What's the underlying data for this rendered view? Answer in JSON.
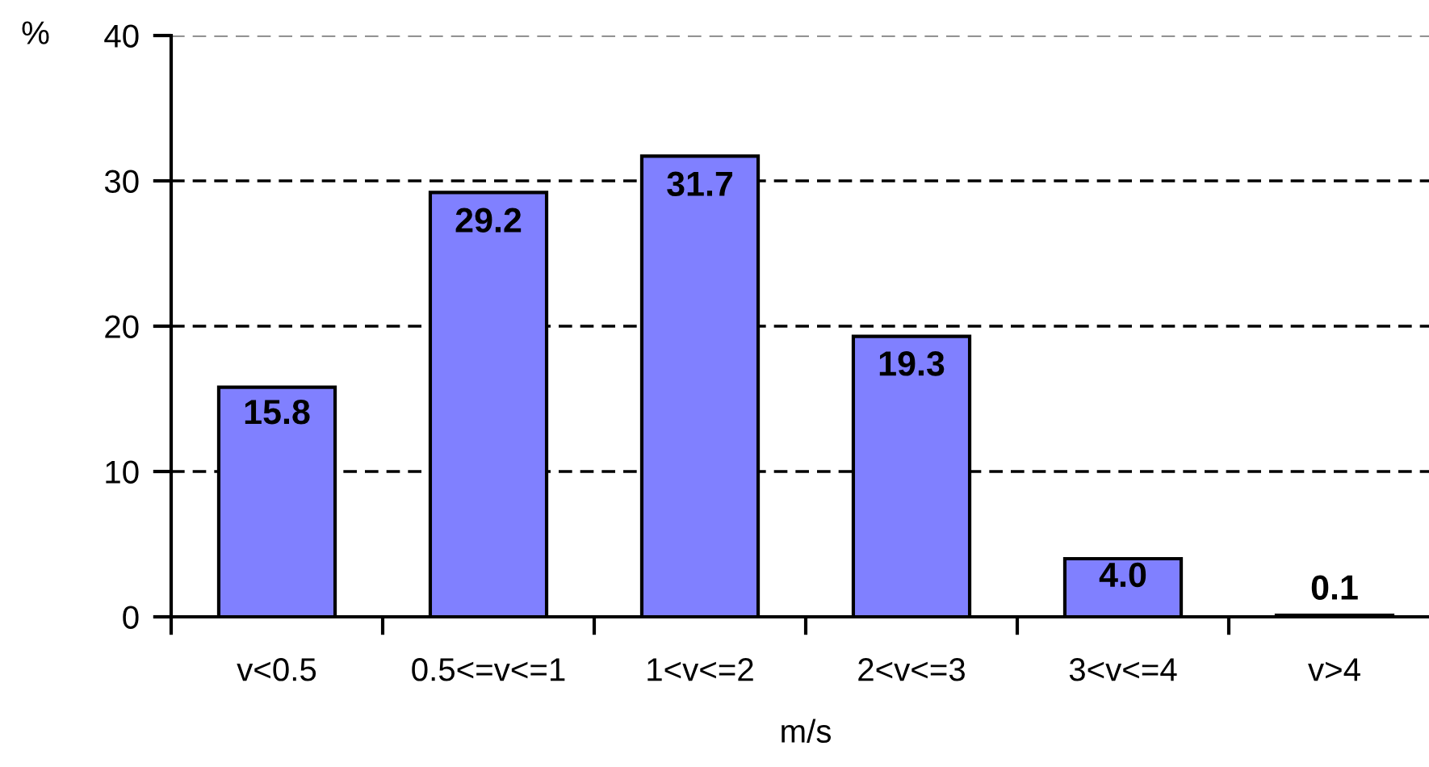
{
  "chart_data": {
    "type": "bar",
    "categories": [
      "v<0.5",
      "0.5<=v<=1",
      "1<v<=2",
      "2<v<=3",
      "3<v<=4",
      "v>4"
    ],
    "values": [
      15.8,
      29.2,
      31.7,
      19.3,
      4.0,
      0.1
    ],
    "value_labels": [
      "15.8",
      "29.2",
      "31.7",
      "19.3",
      "4.0",
      "0.1"
    ],
    "color": "#8080ff",
    "xlabel": "m/s",
    "ylabel": "%",
    "ylim": [
      0,
      40
    ],
    "yticks": [
      0,
      10,
      20,
      30,
      40
    ],
    "grid": "y",
    "legend": false
  }
}
